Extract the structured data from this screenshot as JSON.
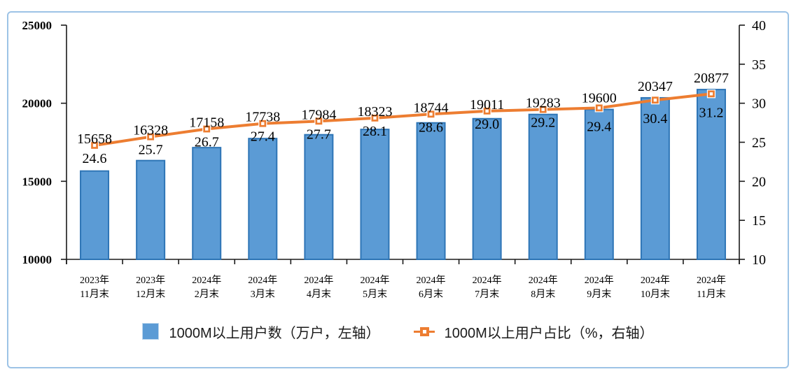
{
  "chart_data": {
    "type": "bar+line",
    "title": "",
    "categories": [
      {
        "line1": "2023年",
        "line2": "11月末"
      },
      {
        "line1": "2023年",
        "line2": "12月末"
      },
      {
        "line1": "2024年",
        "line2": "2月末"
      },
      {
        "line1": "2024年",
        "line2": "3月末"
      },
      {
        "line1": "2024年",
        "line2": "4月末"
      },
      {
        "line1": "2024年",
        "line2": "5月末"
      },
      {
        "line1": "2024年",
        "line2": "6月末"
      },
      {
        "line1": "2024年",
        "line2": "7月末"
      },
      {
        "line1": "2024年",
        "line2": "8月末"
      },
      {
        "line1": "2024年",
        "line2": "9月末"
      },
      {
        "line1": "2024年",
        "line2": "10月末"
      },
      {
        "line1": "2024年",
        "line2": "11月末"
      }
    ],
    "series": [
      {
        "name": "1000M以上用户数（万户，左轴）",
        "type": "bar",
        "axis": "left",
        "values": [
          15658,
          16328,
          17158,
          17738,
          17984,
          18323,
          18744,
          19011,
          19283,
          19600,
          20347,
          20877
        ],
        "color": "#5B9BD5",
        "border_color": "#2E75B6"
      },
      {
        "name": "1000M以上用户占比（%，右轴）",
        "type": "line",
        "axis": "right",
        "values": [
          24.6,
          25.7,
          26.7,
          27.4,
          27.7,
          28.1,
          28.6,
          29.0,
          29.2,
          29.4,
          30.4,
          31.2
        ],
        "color": "#ED7D31",
        "marker": "square-with-white-dot"
      }
    ],
    "left_axis": {
      "min": 10000,
      "max": 25000,
      "step": 5000,
      "ticks": [
        10000,
        15000,
        20000,
        25000
      ]
    },
    "right_axis": {
      "min": 10,
      "max": 40,
      "step": 5,
      "ticks": [
        10,
        15,
        20,
        25,
        30,
        35,
        40
      ]
    },
    "grid": false,
    "legend_position": "bottom",
    "colors": {
      "frame_border": "#9DC3E6",
      "axis_line": "#1a1a1a",
      "background": "#ffffff",
      "x_label": "#404040",
      "data_label": "#000000"
    }
  }
}
